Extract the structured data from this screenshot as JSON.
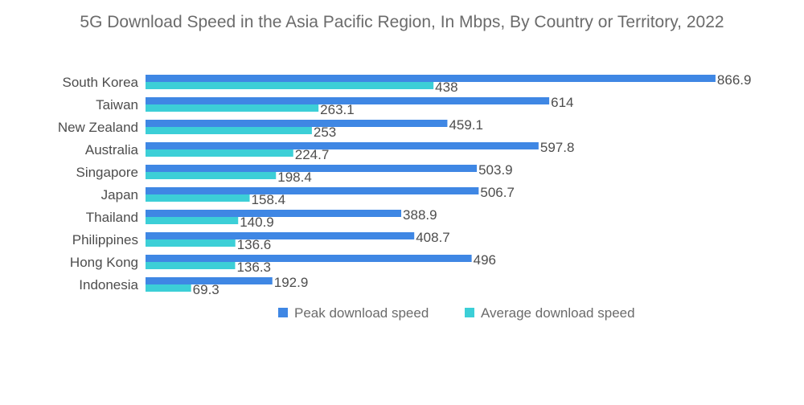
{
  "chart_data": {
    "type": "bar",
    "orientation": "horizontal",
    "title": "5G Download Speed in the Asia Pacific Region, In Mbps, By Country or Territory, 2022",
    "xlabel": "",
    "ylabel": "",
    "xlim": [
      0,
      900
    ],
    "grid": false,
    "legend_position": "bottom",
    "categories": [
      "South Korea",
      "Taiwan",
      "New Zealand",
      "Australia",
      "Singapore",
      "Japan",
      "Thailand",
      "Philippines",
      "Hong Kong",
      "Indonesia"
    ],
    "series": [
      {
        "name": "Peak download speed",
        "color": "#3f87e4",
        "values": [
          866.9,
          614,
          459.1,
          597.8,
          503.9,
          506.7,
          388.9,
          408.7,
          496,
          192.9
        ],
        "labels": [
          "866.9",
          "614",
          "459.1",
          "597.8",
          "503.9",
          "506.7",
          "388.9",
          "408.7",
          "496",
          "192.9"
        ]
      },
      {
        "name": "Average download speed",
        "color": "#3ccfd7",
        "values": [
          438,
          263.1,
          253,
          224.7,
          198.4,
          158.4,
          140.9,
          136.6,
          136.3,
          69.3
        ],
        "labels": [
          "438",
          "263.1",
          "253",
          "224.7",
          "198.4",
          "158.4",
          "140.9",
          "136.6",
          "136.3",
          "69.3"
        ]
      }
    ]
  }
}
